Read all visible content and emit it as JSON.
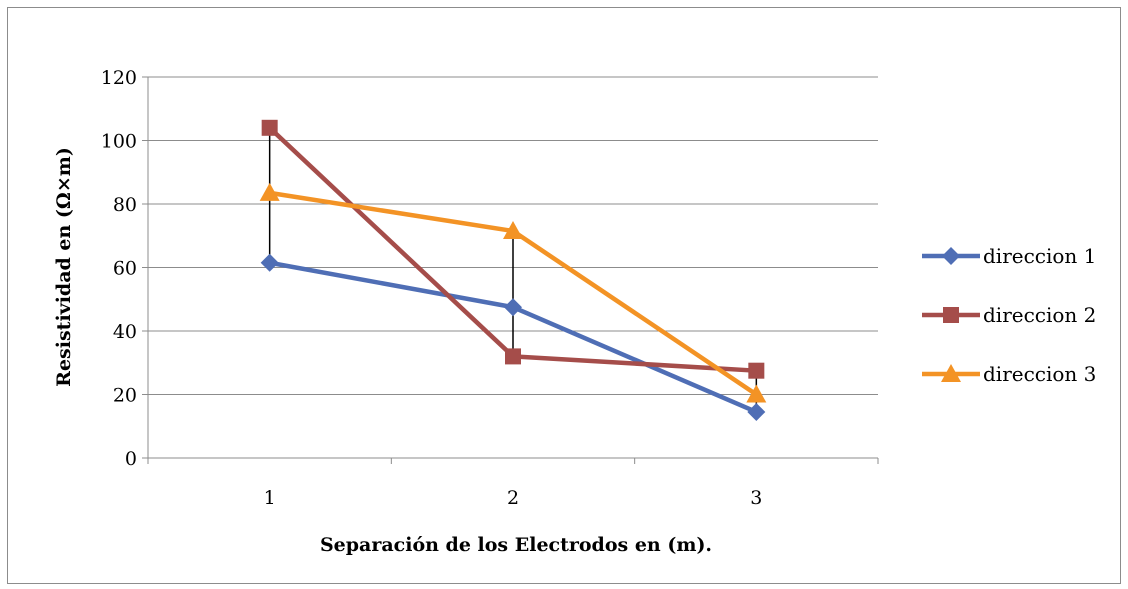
{
  "chart_data": {
    "type": "line",
    "title": "",
    "xlabel": "Separación de los Electrodos en (m).",
    "ylabel": "Resistividad en (Ω×m)",
    "categories": [
      "1",
      "2",
      "3"
    ],
    "ylim": [
      0,
      120
    ],
    "yticks": [
      "0",
      "20",
      "40",
      "60",
      "80",
      "100",
      "120"
    ],
    "grid": true,
    "legend_position": "right",
    "series": [
      {
        "name": "direccion 1",
        "values": [
          61.5,
          47.5,
          14.5
        ],
        "color": "#4f6eb5",
        "marker": "diamond"
      },
      {
        "name": "direccion 2",
        "values": [
          104,
          32,
          27.5
        ],
        "color": "#a54d4a",
        "marker": "square"
      },
      {
        "name": "direccion 3",
        "values": [
          83.5,
          71.5,
          20
        ],
        "color": "#f39325",
        "marker": "triangle"
      }
    ],
    "high_low_lines": true
  }
}
